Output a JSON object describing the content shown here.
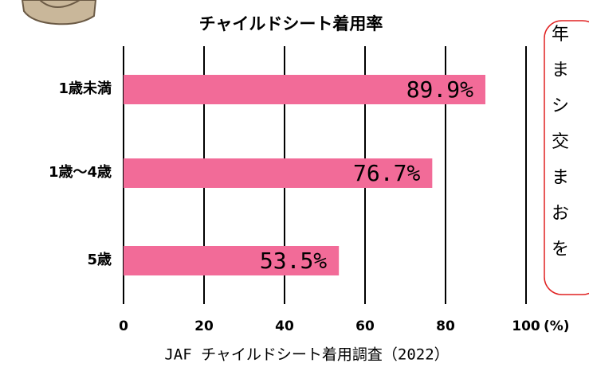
{
  "chart_data": {
    "type": "hbar",
    "title": "チャイルドシート着用率",
    "categories": [
      "1歳未満",
      "1歳～4歳",
      "5歳"
    ],
    "values": [
      89.9,
      76.7,
      53.5
    ],
    "value_labels": [
      "89.9%",
      "76.7%",
      "53.5%"
    ],
    "color": "#f26b98",
    "xlim": [
      0,
      100
    ],
    "xticks": [
      0,
      20,
      40,
      60,
      80,
      100
    ],
    "xlabel": "(%)",
    "grid": true,
    "source": "JAF チャイルドシート着用調査（2022）"
  },
  "callout": {
    "lines": [
      "年",
      "ま",
      "シ",
      "交",
      "ま",
      "お",
      "を"
    ]
  }
}
